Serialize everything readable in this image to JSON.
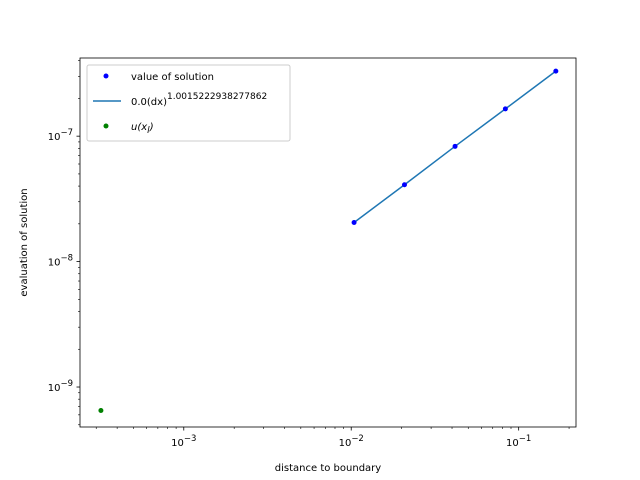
{
  "chart_data": {
    "type": "scatter",
    "xscale": "log",
    "yscale": "log",
    "xlabel": "distance to boundary",
    "ylabel": "evaluation of solution",
    "xlim": [
      0.00024,
      0.22
    ],
    "ylim": [
      4.8e-10,
      4.2e-07
    ],
    "xticks": [
      {
        "value": 0.001,
        "base": "10",
        "exp": "−3"
      },
      {
        "value": 0.01,
        "base": "10",
        "exp": "−2"
      },
      {
        "value": 0.1,
        "base": "10",
        "exp": "−1"
      }
    ],
    "yticks": [
      {
        "value": 1e-09,
        "base": "10",
        "exp": "−9"
      },
      {
        "value": 1e-08,
        "base": "10",
        "exp": "−8"
      },
      {
        "value": 1e-07,
        "base": "10",
        "exp": "−7"
      }
    ],
    "series": [
      {
        "name": "value of solution",
        "kind": "points",
        "color": "#0000ff",
        "x": [
          0.0104,
          0.0208,
          0.0417,
          0.0833,
          0.1667
        ],
        "y": [
          2.05e-08,
          4.1e-08,
          8.3e-08,
          1.65e-07,
          3.3e-07
        ]
      },
      {
        "name": "0.0(dx)^1.0015222938277862",
        "label_main": "0.0(dx)",
        "label_exp": "1.0015222938277862",
        "kind": "line",
        "color": "#1f77b4",
        "x": [
          0.0104,
          0.0208,
          0.0417,
          0.0833,
          0.1667
        ],
        "y": [
          2.05e-08,
          4.1e-08,
          8.3e-08,
          1.65e-07,
          3.3e-07
        ]
      },
      {
        "name": "u(x_l)",
        "label_main": "u(x",
        "label_sub": "l",
        "label_close": ")",
        "kind": "points",
        "color": "#008000",
        "x": [
          0.00032
        ],
        "y": [
          6.5e-10
        ]
      }
    ],
    "legend": {
      "position": "top-left",
      "entries": [
        "value of solution",
        "0.0(dx)^1.0015222938277862",
        "u(x_l)"
      ]
    }
  }
}
